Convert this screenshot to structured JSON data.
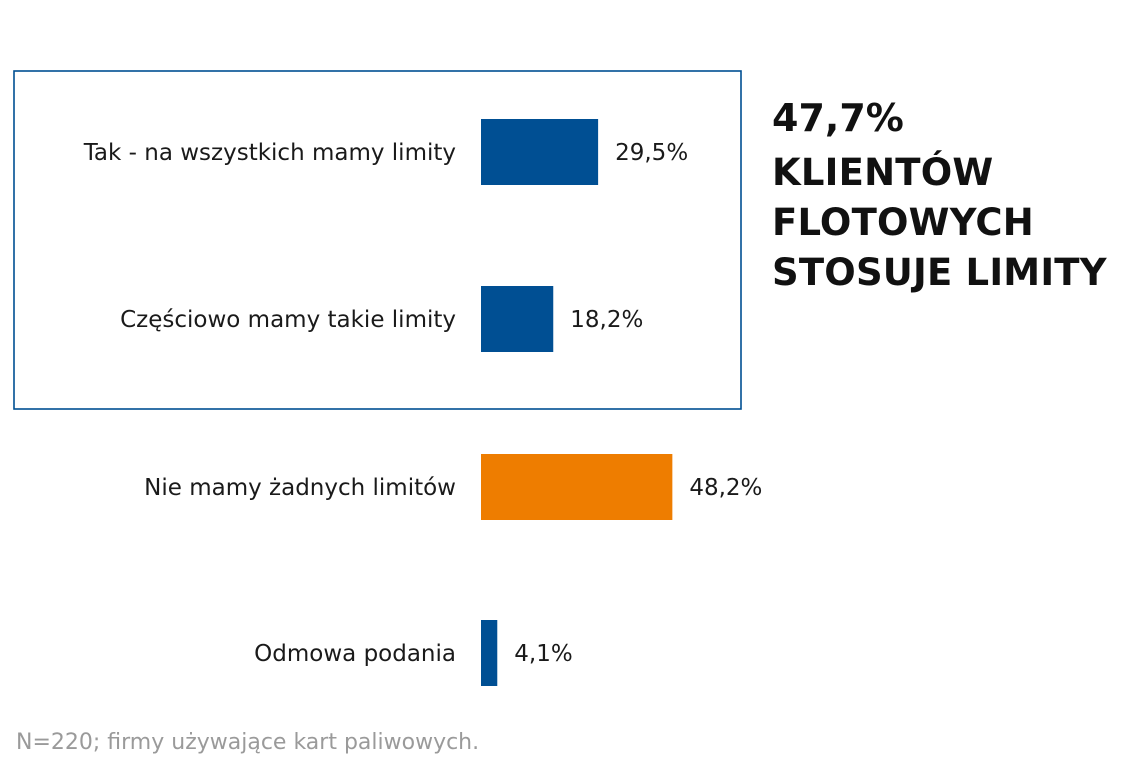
{
  "chart_data": {
    "type": "bar",
    "orientation": "horizontal",
    "categories": [
      "Tak - na wszystkich mamy limity",
      "Częściowo mamy takie limity",
      "Nie mamy żadnych limitów",
      "Odmowa podania"
    ],
    "values": [
      29.5,
      18.2,
      48.2,
      4.1
    ],
    "value_labels": [
      "29,5%",
      "18,2%",
      "48,2%",
      "4,1%"
    ],
    "bar_colors": [
      "#004f93",
      "#004f93",
      "#ee7d00",
      "#004f93"
    ],
    "highlight_box_categories": [
      0,
      1
    ],
    "highlight_box_color": "#004f93",
    "grid": false,
    "axes_visible": false
  },
  "callout": {
    "value": "47,7%",
    "text": "KLIENTÓW FLOTOWYCH STOSUJE LIMITY"
  },
  "footnote": "N=220; firmy używające kart paliwowych."
}
